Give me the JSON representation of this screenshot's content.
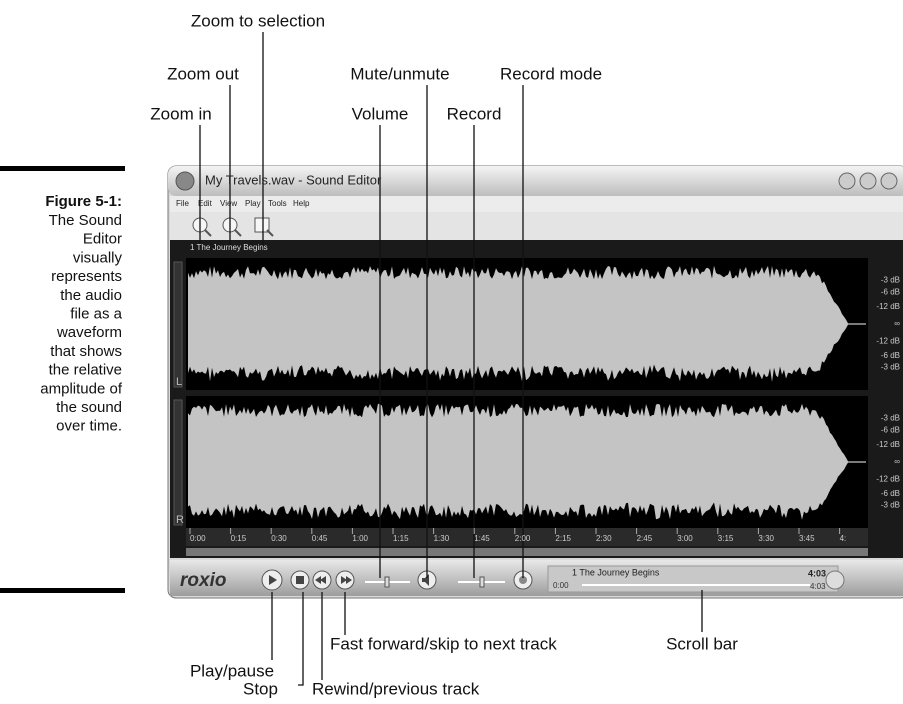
{
  "caption": {
    "figure": "Figure 5-1:",
    "lines": [
      "The Sound",
      "Editor",
      "visually",
      "represents",
      "the audio",
      "file as a",
      "waveform",
      "that shows",
      "the relative",
      "amplitude of",
      "the sound",
      "over time."
    ]
  },
  "window": {
    "title": "My Travels.wav - Sound Editor",
    "menu": [
      "File",
      "Edit",
      "View",
      "Play",
      "Tools",
      "Help"
    ],
    "track_name": "1 The Journey Begins",
    "channels": [
      {
        "label": "L",
        "db_labels": [
          "-3 dB",
          "-6 dB",
          "-12 dB",
          "∞",
          "-12 dB",
          "-6 dB",
          "-3 dB"
        ]
      },
      {
        "label": "R",
        "db_labels": [
          "-3 dB",
          "-6 dB",
          "-12 dB",
          "∞",
          "-12 dB",
          "-6 dB",
          "-3 dB"
        ]
      }
    ],
    "time_labels": [
      "0:00",
      "0:15",
      "0:30",
      "0:45",
      "1:00",
      "1:15",
      "1:30",
      "1:45",
      "2:00",
      "2:15",
      "2:30",
      "2:45",
      "3:00",
      "3:15",
      "3:30",
      "3:45",
      "4:"
    ],
    "player": {
      "logo": "roxio",
      "track": "1 The Journey Begins",
      "position": "0:00",
      "duration": "4:03",
      "total": "4:03"
    }
  },
  "callouts": [
    {
      "label": "Zoom to selection"
    },
    {
      "label": "Zoom out"
    },
    {
      "label": "Mute/unmute"
    },
    {
      "label": "Record mode"
    },
    {
      "label": "Zoom in"
    },
    {
      "label": "Volume"
    },
    {
      "label": "Record"
    },
    {
      "label": "Play/pause"
    },
    {
      "label": "Fast forward/skip to next track"
    },
    {
      "label": "Scroll bar"
    },
    {
      "label": "Stop"
    },
    {
      "label": "Rewind/previous track"
    }
  ]
}
